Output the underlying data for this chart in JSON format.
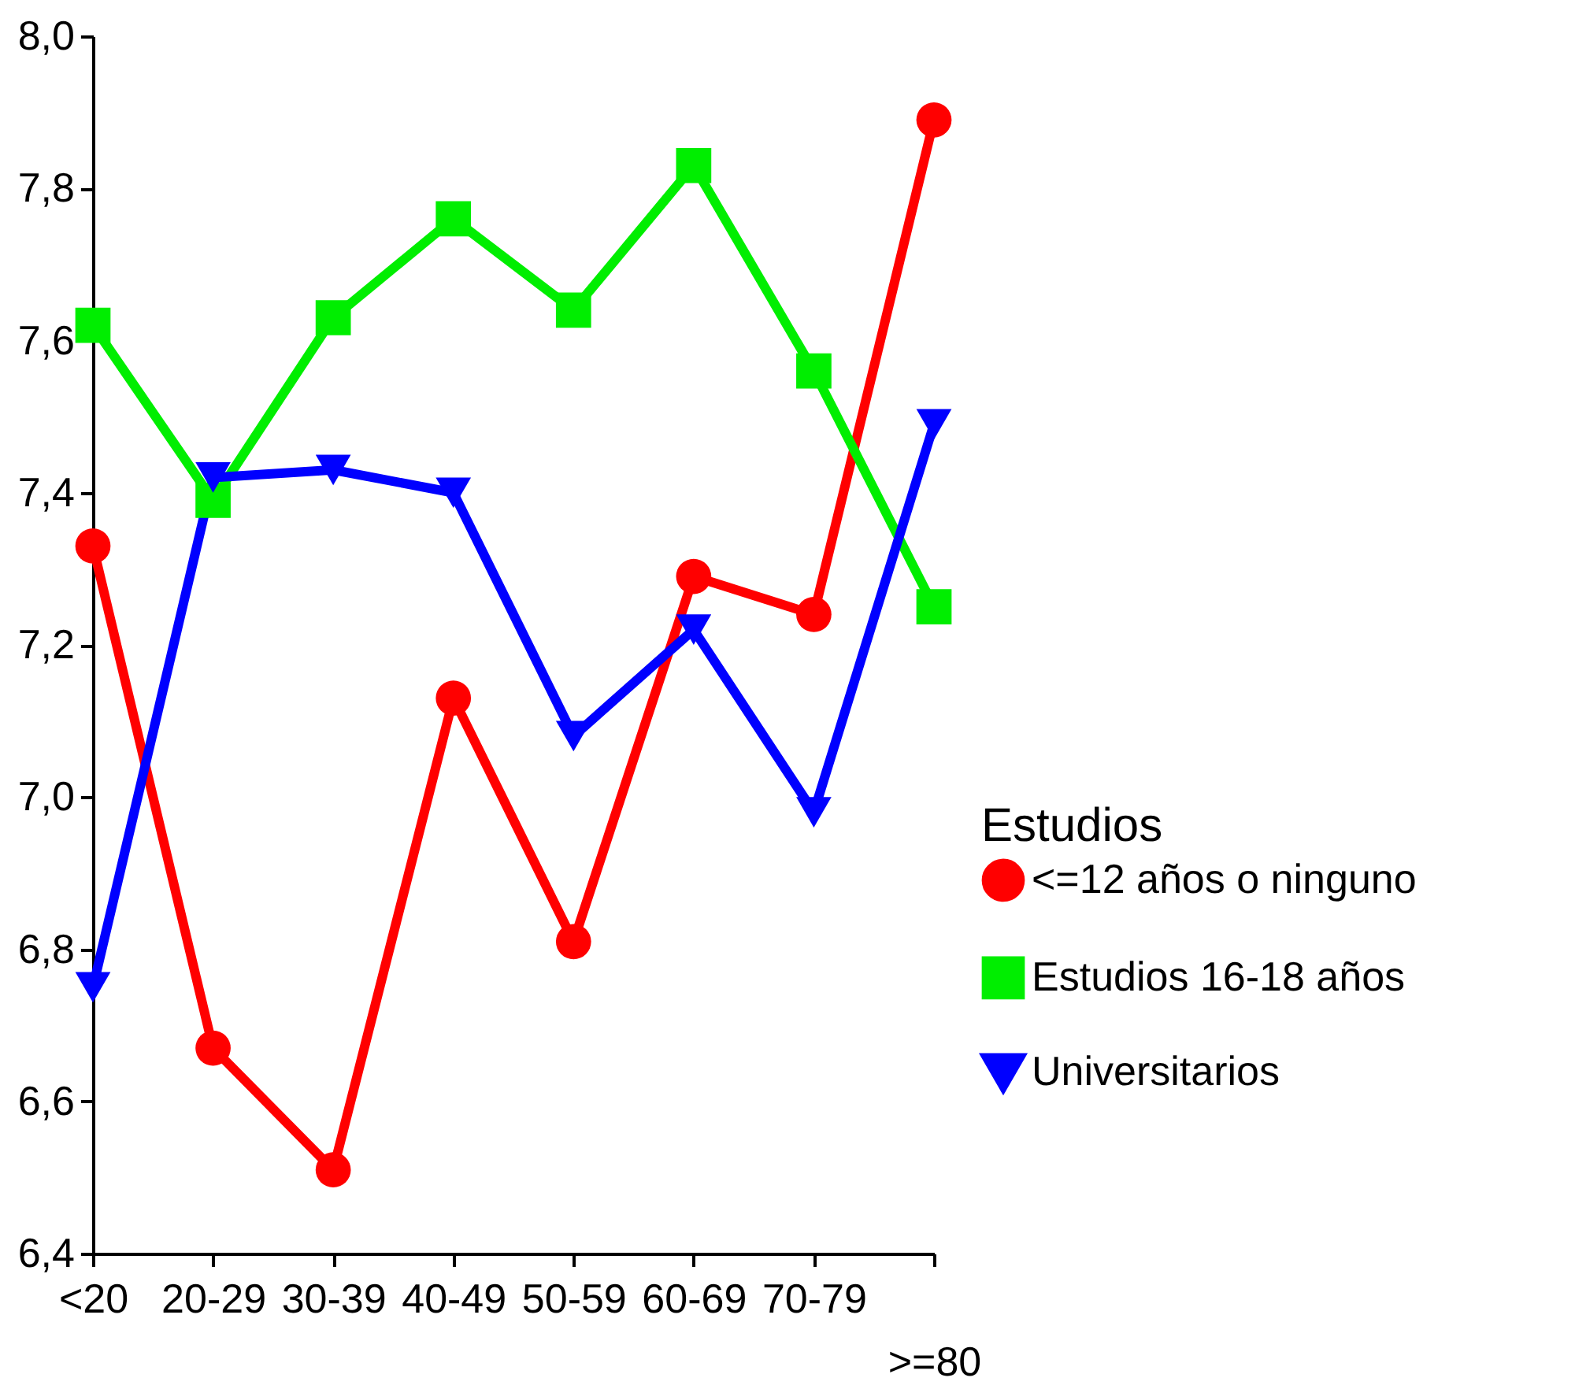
{
  "chart_data": {
    "type": "line",
    "legend_title": "Estudios",
    "legend": "right",
    "grid": false,
    "categories": [
      "<20",
      "20-29",
      "30-39",
      "40-49",
      "50-59",
      "60-69",
      "70-79",
      ">=80"
    ],
    "series": [
      {
        "name": "<=12 años o ninguno",
        "color": "#ff0000",
        "marker": "circle",
        "values": [
          7.33,
          6.67,
          6.51,
          7.13,
          6.81,
          7.29,
          7.24,
          7.89
        ]
      },
      {
        "name": "Estudios 16-18 años",
        "color": "#00ee00",
        "marker": "square",
        "values": [
          7.62,
          7.39,
          7.63,
          7.76,
          7.64,
          7.83,
          7.56,
          7.25
        ]
      },
      {
        "name": "Universitarios",
        "color": "#0000ff",
        "marker": "triangle-down",
        "values": [
          6.75,
          7.42,
          7.43,
          7.4,
          7.08,
          7.22,
          6.98,
          7.49
        ]
      }
    ],
    "ylim": [
      6.4,
      8.0
    ],
    "yticks": [
      {
        "value": 6.4,
        "label": "6,4"
      },
      {
        "value": 6.6,
        "label": "6,6"
      },
      {
        "value": 6.8,
        "label": "6,8"
      },
      {
        "value": 7.0,
        "label": "7,0"
      },
      {
        "value": 7.2,
        "label": "7,2"
      },
      {
        "value": 7.4,
        "label": "7,4"
      },
      {
        "value": 7.6,
        "label": "7,6"
      },
      {
        "value": 7.8,
        "label": "7,8"
      },
      {
        "value": 8.0,
        "label": "8,0"
      }
    ]
  }
}
